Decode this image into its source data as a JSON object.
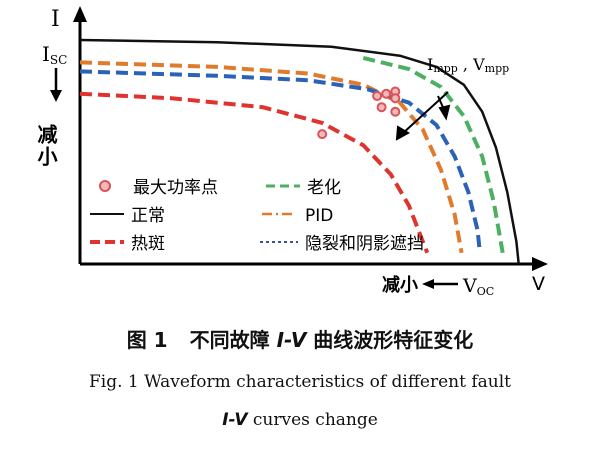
{
  "chart_data": {
    "type": "line",
    "axes": {
      "y_label": "I",
      "x_label": "V",
      "isc_label": "I",
      "isc_sub": "SC",
      "voc_label": "V",
      "voc_sub": "OC",
      "decrease_y": "减小",
      "decrease_x": "减小"
    },
    "mpp_annotation": {
      "i_main": "I",
      "i_sub": "mpp",
      "sep": " , ",
      "v_main": "V",
      "v_sub": "mpp"
    },
    "legend": [
      {
        "label": "最大功率点",
        "style": "marker",
        "color": "#d9535a"
      },
      {
        "label": "老化",
        "style": "dashed",
        "color": "#4bb062"
      },
      {
        "label": "正常",
        "style": "solid",
        "color": "#111111"
      },
      {
        "label": "PID",
        "style": "dash-dot",
        "color": "#e07b2e"
      },
      {
        "label": "热斑",
        "style": "dashed",
        "color": "#e0322e"
      },
      {
        "label": "隐裂和阴影遮挡",
        "style": "dotted",
        "color": "#3a4fa0"
      }
    ],
    "series": [
      {
        "name": "正常",
        "color": "#111111",
        "style": "solid",
        "points": [
          [
            0,
            1.0
          ],
          [
            0.3,
            0.99
          ],
          [
            0.55,
            0.97
          ],
          [
            0.7,
            0.93
          ],
          [
            0.78,
            0.88
          ],
          [
            0.84,
            0.8
          ],
          [
            0.88,
            0.68
          ],
          [
            0.91,
            0.52
          ],
          [
            0.935,
            0.32
          ],
          [
            0.955,
            0.1
          ],
          [
            0.96,
            0.0
          ]
        ]
      },
      {
        "name": "老化",
        "color": "#4bb062",
        "style": "dashed",
        "points": [
          [
            0.62,
            0.92
          ],
          [
            0.72,
            0.87
          ],
          [
            0.79,
            0.79
          ],
          [
            0.84,
            0.66
          ],
          [
            0.88,
            0.48
          ],
          [
            0.905,
            0.28
          ],
          [
            0.925,
            0.05
          ]
        ]
      },
      {
        "name": "PID",
        "color": "#e07b2e",
        "style": "dashed",
        "points": [
          [
            0,
            0.9
          ],
          [
            0.3,
            0.88
          ],
          [
            0.5,
            0.85
          ],
          [
            0.62,
            0.8
          ],
          [
            0.7,
            0.72
          ],
          [
            0.75,
            0.6
          ],
          [
            0.79,
            0.42
          ],
          [
            0.82,
            0.22
          ],
          [
            0.835,
            0.05
          ]
        ]
      },
      {
        "name": "隐裂和阴影遮挡",
        "color": "#2a62b8",
        "style": "dashed",
        "points": [
          [
            0,
            0.86
          ],
          [
            0.3,
            0.84
          ],
          [
            0.5,
            0.82
          ],
          [
            0.63,
            0.78
          ],
          [
            0.72,
            0.72
          ],
          [
            0.78,
            0.62
          ],
          [
            0.82,
            0.48
          ],
          [
            0.85,
            0.32
          ],
          [
            0.87,
            0.15
          ],
          [
            0.875,
            0.05
          ]
        ]
      },
      {
        "name": "热斑",
        "color": "#e0322e",
        "style": "dashed",
        "points": [
          [
            0,
            0.76
          ],
          [
            0.2,
            0.74
          ],
          [
            0.4,
            0.7
          ],
          [
            0.53,
            0.63
          ],
          [
            0.62,
            0.53
          ],
          [
            0.68,
            0.4
          ],
          [
            0.72,
            0.26
          ],
          [
            0.75,
            0.1
          ],
          [
            0.76,
            0.05
          ]
        ]
      }
    ],
    "mpp_points": [
      [
        0.69,
        0.77
      ],
      [
        0.65,
        0.75
      ],
      [
        0.69,
        0.68
      ],
      [
        0.69,
        0.74
      ],
      [
        0.66,
        0.7
      ],
      [
        0.67,
        0.76
      ],
      [
        0.53,
        0.58
      ]
    ]
  },
  "caption": {
    "cn_prefix": "图 1",
    "cn_text_a": "不同故障 ",
    "cn_iv": "I-V",
    "cn_text_b": " 曲线波形特征变化",
    "en_line1": "Fig. 1   Waveform characteristics of different fault",
    "en_iv": "I-V",
    "en_line2_rest": " curves change"
  }
}
